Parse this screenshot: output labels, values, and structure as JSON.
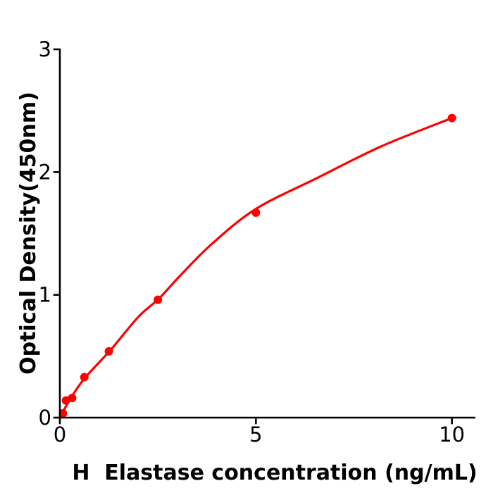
{
  "figure": {
    "background_color": "#ffffff",
    "axis_color": "#000000",
    "accent_color": "#ff0000"
  },
  "chart_data": {
    "type": "scatter",
    "title": "",
    "xlabel": "H  Elastase concentration (ng/mL)",
    "ylabel": "Optical Density(450nm)",
    "xlim": [
      0,
      10.6
    ],
    "ylim": [
      0,
      3
    ],
    "grid": false,
    "legend": null,
    "x_ticks": [
      {
        "value": 0,
        "label": "0"
      },
      {
        "value": 5,
        "label": "5"
      },
      {
        "value": 10,
        "label": "10"
      }
    ],
    "y_ticks": [
      {
        "value": 0,
        "label": "0"
      },
      {
        "value": 1,
        "label": "1"
      },
      {
        "value": 2,
        "label": "2"
      },
      {
        "value": 3,
        "label": "3"
      }
    ],
    "series": [
      {
        "name": "fitted-curve",
        "type": "line",
        "color": "#ff0000",
        "points": [
          {
            "x": 0,
            "y": 0
          },
          {
            "x": 0.27,
            "y": 0.155
          },
          {
            "x": 0.63,
            "y": 0.32
          },
          {
            "x": 1.29,
            "y": 0.55
          },
          {
            "x": 2.0,
            "y": 0.82
          },
          {
            "x": 2.53,
            "y": 0.97
          },
          {
            "x": 3.02,
            "y": 1.14
          },
          {
            "x": 3.86,
            "y": 1.41
          },
          {
            "x": 5.0,
            "y": 1.7
          },
          {
            "x": 6.55,
            "y": 1.95
          },
          {
            "x": 8.2,
            "y": 2.21
          },
          {
            "x": 10,
            "y": 2.44
          }
        ]
      },
      {
        "name": "standard-points",
        "type": "scatter",
        "color": "#ff0000",
        "marker": "circle",
        "points": [
          {
            "x": 0.078,
            "y": 0.035
          },
          {
            "x": 0.156,
            "y": 0.14
          },
          {
            "x": 0.3125,
            "y": 0.16
          },
          {
            "x": 0.625,
            "y": 0.33
          },
          {
            "x": 1.25,
            "y": 0.54
          },
          {
            "x": 2.5,
            "y": 0.96
          },
          {
            "x": 5,
            "y": 1.67
          },
          {
            "x": 10,
            "y": 2.44
          }
        ]
      }
    ]
  }
}
